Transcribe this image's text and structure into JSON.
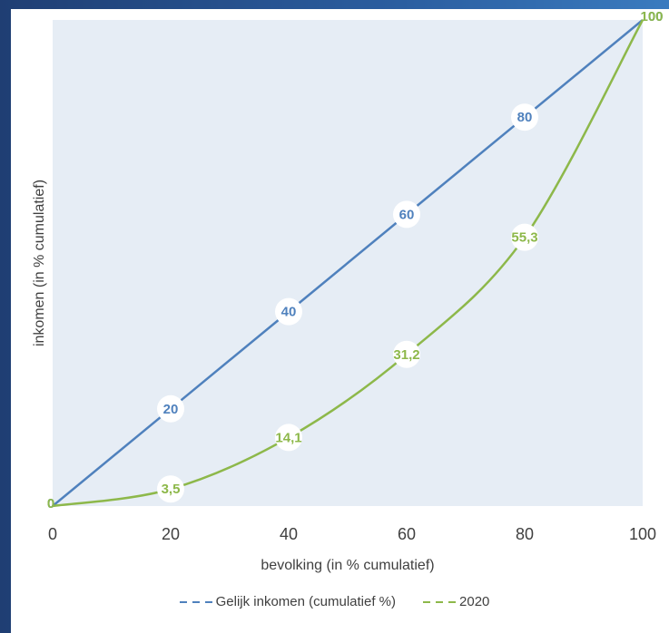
{
  "colors": {
    "equal": "#4f81bd",
    "curve": "#8db84a",
    "plot_bg": "#e6edf5"
  },
  "chart_data": {
    "type": "line",
    "title": "",
    "xlabel": "bevolking (in % cumulatief)",
    "ylabel": "inkomen (in % cumulatief)",
    "xlim": [
      0,
      100
    ],
    "ylim": [
      0,
      100
    ],
    "x_ticks": [
      "0",
      "20",
      "40",
      "60",
      "80",
      "100"
    ],
    "grid": false,
    "legend_position": "bottom",
    "series": [
      {
        "name": "Gelijk inkomen (cumulatief %)",
        "x": [
          0,
          20,
          40,
          60,
          80,
          100
        ],
        "y": [
          0,
          20,
          40,
          60,
          80,
          100
        ],
        "labels": [
          "0",
          "20",
          "40",
          "60",
          "80",
          "100"
        ]
      },
      {
        "name": "2020",
        "x": [
          0,
          20,
          40,
          60,
          80,
          100
        ],
        "y": [
          0,
          3.5,
          14.1,
          31.2,
          55.3,
          100
        ],
        "labels": [
          "0",
          "3,5",
          "14,1",
          "31,2",
          "55,3",
          "100"
        ]
      }
    ]
  }
}
